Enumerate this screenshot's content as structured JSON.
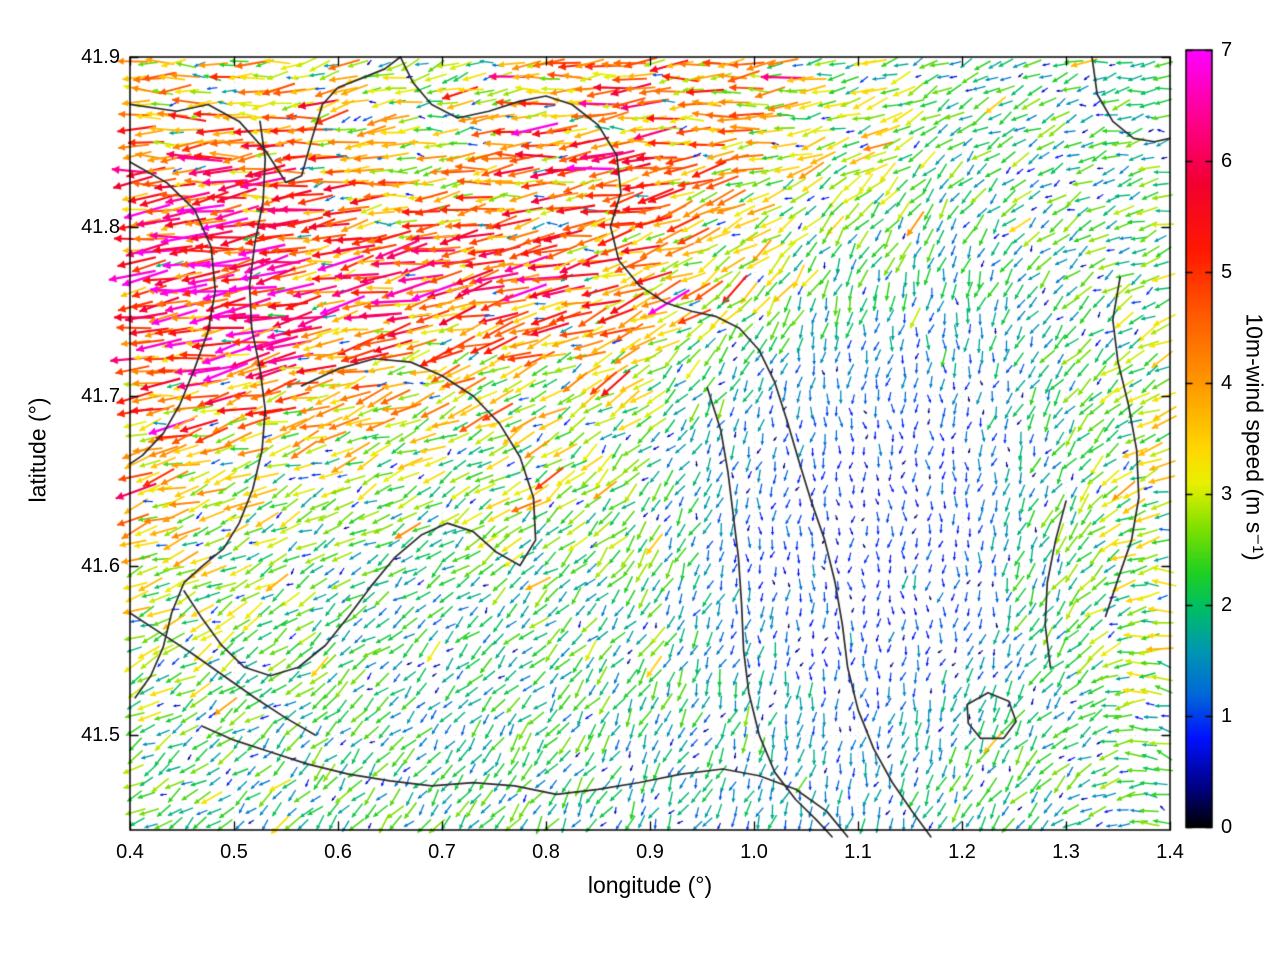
{
  "chart_data": {
    "type": "quiver",
    "title": "",
    "xlabel": "longitude (°)",
    "ylabel": "latitude (°)",
    "xlim": [
      0.4,
      1.4
    ],
    "ylim": [
      41.444,
      41.9
    ],
    "grid": true,
    "legend_position": "none",
    "x_ticks": [
      {
        "v": 0.4,
        "label": "0.4"
      },
      {
        "v": 0.5,
        "label": "0.5"
      },
      {
        "v": 0.6,
        "label": "0.6"
      },
      {
        "v": 0.7,
        "label": "0.7"
      },
      {
        "v": 0.8,
        "label": "0.8"
      },
      {
        "v": 0.9,
        "label": "0.9"
      },
      {
        "v": 1.0,
        "label": "1.0"
      },
      {
        "v": 1.1,
        "label": "1.1"
      },
      {
        "v": 1.2,
        "label": "1.2"
      },
      {
        "v": 1.3,
        "label": "1.3"
      },
      {
        "v": 1.4,
        "label": "1.4"
      }
    ],
    "y_ticks": [
      {
        "v": 41.5,
        "label": "41.5"
      },
      {
        "v": 41.6,
        "label": "41.6"
      },
      {
        "v": 41.7,
        "label": "41.7"
      },
      {
        "v": 41.8,
        "label": "41.8"
      },
      {
        "v": 41.9,
        "label": "41.9"
      }
    ],
    "colorbar": {
      "label": "10m-wind speed (m s⁻¹)",
      "range": [
        0,
        7
      ],
      "ticks": [
        {
          "v": 0,
          "label": "0"
        },
        {
          "v": 1,
          "label": "1"
        },
        {
          "v": 2,
          "label": "2"
        },
        {
          "v": 3,
          "label": "3"
        },
        {
          "v": 4,
          "label": "4"
        },
        {
          "v": 5,
          "label": "5"
        },
        {
          "v": 6,
          "label": "6"
        },
        {
          "v": 7,
          "label": "7"
        }
      ],
      "stops": [
        [
          0.0,
          "#000000"
        ],
        [
          0.35,
          "#000080"
        ],
        [
          0.8,
          "#0010ff"
        ],
        [
          1.2,
          "#0068d8"
        ],
        [
          1.6,
          "#0098b0"
        ],
        [
          2.0,
          "#00c060"
        ],
        [
          2.3,
          "#20d020"
        ],
        [
          2.7,
          "#80e000"
        ],
        [
          3.1,
          "#e8f000"
        ],
        [
          3.4,
          "#ffd800"
        ],
        [
          4.0,
          "#ff9800"
        ],
        [
          4.6,
          "#ff5c00"
        ],
        [
          5.2,
          "#ff1800"
        ],
        [
          5.8,
          "#f20030"
        ],
        [
          6.4,
          "#ff0090"
        ],
        [
          7.0,
          "#ff00ff"
        ]
      ]
    },
    "colors": {
      "contour": "#2b2b2b",
      "frame": "#000000",
      "grid": "#9a9a9a",
      "background": "#ffffff"
    },
    "field": {
      "lon_nodes": [
        0.4,
        0.5,
        0.6,
        0.7,
        0.8,
        0.9,
        1.0,
        1.1,
        1.2,
        1.3,
        1.4
      ],
      "lat_nodes": [
        41.9,
        41.854,
        41.808,
        41.762,
        41.716,
        41.67,
        41.624,
        41.578,
        41.532,
        41.486,
        41.44
      ],
      "speed_grid": [
        [
          3.0,
          3.5,
          2.5,
          2.0,
          3.5,
          4.2,
          3.5,
          2.5,
          2.0,
          2.0,
          2.0
        ],
        [
          4.2,
          4.5,
          4.0,
          3.0,
          4.5,
          4.8,
          3.5,
          3.0,
          2.2,
          2.0,
          2.0
        ],
        [
          5.3,
          5.5,
          4.5,
          4.0,
          4.3,
          4.0,
          3.0,
          2.5,
          2.0,
          2.0,
          2.3
        ],
        [
          5.2,
          6.0,
          5.2,
          5.2,
          5.0,
          4.0,
          3.0,
          2.0,
          1.6,
          2.0,
          2.5
        ],
        [
          4.6,
          5.0,
          4.0,
          3.5,
          3.4,
          3.0,
          1.5,
          1.2,
          1.2,
          2.0,
          2.8
        ],
        [
          4.0,
          3.5,
          3.0,
          2.8,
          3.0,
          2.0,
          1.2,
          0.8,
          0.9,
          2.0,
          3.0
        ],
        [
          3.5,
          2.8,
          2.2,
          2.2,
          2.6,
          2.2,
          1.0,
          0.8,
          1.0,
          2.2,
          2.8
        ],
        [
          3.0,
          2.5,
          2.0,
          1.8,
          2.2,
          2.0,
          1.2,
          0.8,
          1.0,
          2.2,
          3.0
        ],
        [
          2.6,
          2.2,
          2.0,
          1.6,
          2.0,
          2.0,
          1.5,
          1.0,
          1.5,
          2.0,
          2.8
        ],
        [
          2.2,
          2.0,
          2.0,
          1.8,
          2.0,
          1.8,
          1.5,
          1.2,
          1.8,
          2.0,
          2.2
        ],
        [
          2.0,
          2.0,
          2.0,
          2.0,
          2.0,
          1.6,
          1.5,
          1.5,
          2.0,
          2.0,
          2.0
        ]
      ],
      "dir_grid_deg": [
        [
          178,
          182,
          195,
          200,
          185,
          182,
          185,
          195,
          205,
          195,
          185
        ],
        [
          182,
          184,
          188,
          185,
          183,
          185,
          188,
          200,
          215,
          205,
          190
        ],
        [
          186,
          188,
          190,
          188,
          190,
          195,
          205,
          230,
          235,
          210,
          195
        ],
        [
          188,
          190,
          192,
          193,
          195,
          200,
          225,
          255,
          258,
          220,
          200
        ],
        [
          190,
          193,
          195,
          198,
          200,
          212,
          245,
          265,
          265,
          230,
          205
        ],
        [
          194,
          198,
          200,
          208,
          212,
          225,
          258,
          270,
          268,
          235,
          195
        ],
        [
          198,
          204,
          210,
          214,
          216,
          232,
          262,
          272,
          266,
          240,
          185
        ],
        [
          202,
          210,
          215,
          220,
          222,
          236,
          260,
          270,
          262,
          232,
          172
        ],
        [
          206,
          214,
          220,
          226,
          226,
          240,
          256,
          266,
          252,
          226,
          166
        ],
        [
          210,
          218,
          226,
          230,
          232,
          242,
          250,
          260,
          246,
          222,
          162
        ],
        [
          214,
          222,
          228,
          232,
          236,
          242,
          246,
          252,
          242,
          220,
          170
        ]
      ],
      "render": {
        "cols": 80,
        "rows": 58,
        "seed": 7,
        "len_scale": 6.6
      }
    },
    "contours_lonlat": [
      [
        [
          0.4,
          41.872
        ],
        [
          0.445,
          41.868
        ],
        [
          0.475,
          41.872
        ],
        [
          0.505,
          41.862
        ],
        [
          0.53,
          41.845
        ],
        [
          0.55,
          41.826
        ],
        [
          0.565,
          41.83
        ],
        [
          0.575,
          41.852
        ],
        [
          0.585,
          41.872
        ],
        [
          0.6,
          41.882
        ],
        [
          0.625,
          41.888
        ],
        [
          0.645,
          41.893
        ],
        [
          0.66,
          41.9
        ]
      ],
      [
        [
          0.66,
          41.9
        ],
        [
          0.672,
          41.885
        ],
        [
          0.69,
          41.872
        ],
        [
          0.715,
          41.864
        ],
        [
          0.745,
          41.868
        ],
        [
          0.775,
          41.874
        ],
        [
          0.8,
          41.877
        ],
        [
          0.825,
          41.872
        ],
        [
          0.85,
          41.86
        ],
        [
          0.868,
          41.842
        ],
        [
          0.872,
          41.82
        ],
        [
          0.862,
          41.8
        ],
        [
          0.87,
          41.78
        ],
        [
          0.89,
          41.765
        ],
        [
          0.915,
          41.755
        ],
        [
          0.94,
          41.75
        ],
        [
          0.963,
          41.747
        ],
        [
          0.986,
          41.74
        ],
        [
          1.005,
          41.727
        ],
        [
          1.02,
          41.708
        ],
        [
          1.032,
          41.685
        ],
        [
          1.043,
          41.662
        ],
        [
          1.055,
          41.638
        ],
        [
          1.068,
          41.615
        ],
        [
          1.078,
          41.59
        ],
        [
          1.085,
          41.565
        ],
        [
          1.09,
          41.54
        ],
        [
          1.1,
          41.515
        ],
        [
          1.115,
          41.492
        ],
        [
          1.133,
          41.472
        ],
        [
          1.152,
          41.455
        ],
        [
          1.17,
          41.44
        ]
      ],
      [
        [
          0.955,
          41.705
        ],
        [
          0.968,
          41.68
        ],
        [
          0.975,
          41.655
        ],
        [
          0.98,
          41.63
        ],
        [
          0.985,
          41.605
        ],
        [
          0.988,
          41.578
        ],
        [
          0.99,
          41.55
        ],
        [
          0.995,
          41.525
        ],
        [
          1.005,
          41.5
        ],
        [
          1.02,
          41.478
        ],
        [
          1.04,
          41.462
        ],
        [
          1.06,
          41.45
        ],
        [
          1.075,
          41.44
        ]
      ],
      [
        [
          0.525,
          41.862
        ],
        [
          0.53,
          41.84
        ],
        [
          0.528,
          41.815
        ],
        [
          0.52,
          41.79
        ],
        [
          0.515,
          41.765
        ],
        [
          0.517,
          41.74
        ],
        [
          0.525,
          41.716
        ],
        [
          0.53,
          41.692
        ],
        [
          0.527,
          41.668
        ],
        [
          0.518,
          41.645
        ],
        [
          0.505,
          41.625
        ],
        [
          0.49,
          41.61
        ],
        [
          0.47,
          41.6
        ],
        [
          0.452,
          41.59
        ],
        [
          0.44,
          41.572
        ],
        [
          0.432,
          41.552
        ],
        [
          0.42,
          41.535
        ],
        [
          0.405,
          41.522
        ]
      ],
      [
        [
          0.4,
          41.838
        ],
        [
          0.435,
          41.826
        ],
        [
          0.462,
          41.81
        ],
        [
          0.478,
          41.788
        ],
        [
          0.482,
          41.762
        ],
        [
          0.475,
          41.738
        ],
        [
          0.462,
          41.716
        ],
        [
          0.448,
          41.695
        ],
        [
          0.432,
          41.678
        ],
        [
          0.412,
          41.665
        ],
        [
          0.4,
          41.66
        ]
      ],
      [
        [
          0.565,
          41.706
        ],
        [
          0.6,
          41.716
        ],
        [
          0.635,
          41.722
        ],
        [
          0.67,
          41.72
        ],
        [
          0.7,
          41.712
        ],
        [
          0.73,
          41.7
        ],
        [
          0.755,
          41.684
        ],
        [
          0.775,
          41.664
        ],
        [
          0.788,
          41.64
        ],
        [
          0.79,
          41.615
        ],
        [
          0.775,
          41.6
        ],
        [
          0.752,
          41.608
        ],
        [
          0.73,
          41.62
        ],
        [
          0.705,
          41.625
        ],
        [
          0.68,
          41.618
        ],
        [
          0.655,
          41.605
        ],
        [
          0.632,
          41.588
        ],
        [
          0.61,
          41.57
        ],
        [
          0.588,
          41.553
        ],
        [
          0.562,
          41.54
        ],
        [
          0.535,
          41.535
        ],
        [
          0.51,
          41.54
        ],
        [
          0.488,
          41.553
        ],
        [
          0.468,
          41.57
        ],
        [
          0.452,
          41.585
        ]
      ],
      [
        [
          0.47,
          41.505
        ],
        [
          0.5,
          41.497
        ],
        [
          0.535,
          41.49
        ],
        [
          0.57,
          41.483
        ],
        [
          0.61,
          41.477
        ],
        [
          0.65,
          41.473
        ],
        [
          0.69,
          41.47
        ],
        [
          0.73,
          41.472
        ],
        [
          0.77,
          41.47
        ],
        [
          0.81,
          41.465
        ],
        [
          0.85,
          41.468
        ],
        [
          0.89,
          41.472
        ],
        [
          0.93,
          41.477
        ],
        [
          0.97,
          41.48
        ],
        [
          1.005,
          41.476
        ],
        [
          1.04,
          41.468
        ],
        [
          1.07,
          41.455
        ],
        [
          1.09,
          41.44
        ]
      ],
      [
        [
          0.4,
          41.572
        ],
        [
          0.43,
          41.56
        ],
        [
          0.46,
          41.548
        ],
        [
          0.49,
          41.535
        ],
        [
          0.52,
          41.522
        ],
        [
          0.55,
          41.51
        ],
        [
          0.578,
          41.5
        ]
      ],
      [
        [
          1.205,
          41.518
        ],
        [
          1.225,
          41.525
        ],
        [
          1.245,
          41.52
        ],
        [
          1.252,
          41.508
        ],
        [
          1.24,
          41.498
        ],
        [
          1.218,
          41.498
        ],
        [
          1.206,
          41.507
        ],
        [
          1.205,
          41.518
        ]
      ],
      [
        [
          1.325,
          41.9
        ],
        [
          1.33,
          41.878
        ],
        [
          1.345,
          41.862
        ],
        [
          1.365,
          41.852
        ],
        [
          1.385,
          41.85
        ],
        [
          1.4,
          41.852
        ]
      ],
      [
        [
          1.352,
          41.77
        ],
        [
          1.345,
          41.745
        ],
        [
          1.35,
          41.72
        ],
        [
          1.36,
          41.695
        ],
        [
          1.368,
          41.668
        ],
        [
          1.37,
          41.64
        ],
        [
          1.363,
          41.615
        ],
        [
          1.35,
          41.592
        ],
        [
          1.338,
          41.57
        ]
      ],
      [
        [
          1.3,
          41.638
        ],
        [
          1.29,
          41.615
        ],
        [
          1.282,
          41.59
        ],
        [
          1.28,
          41.565
        ],
        [
          1.285,
          41.54
        ]
      ]
    ]
  }
}
